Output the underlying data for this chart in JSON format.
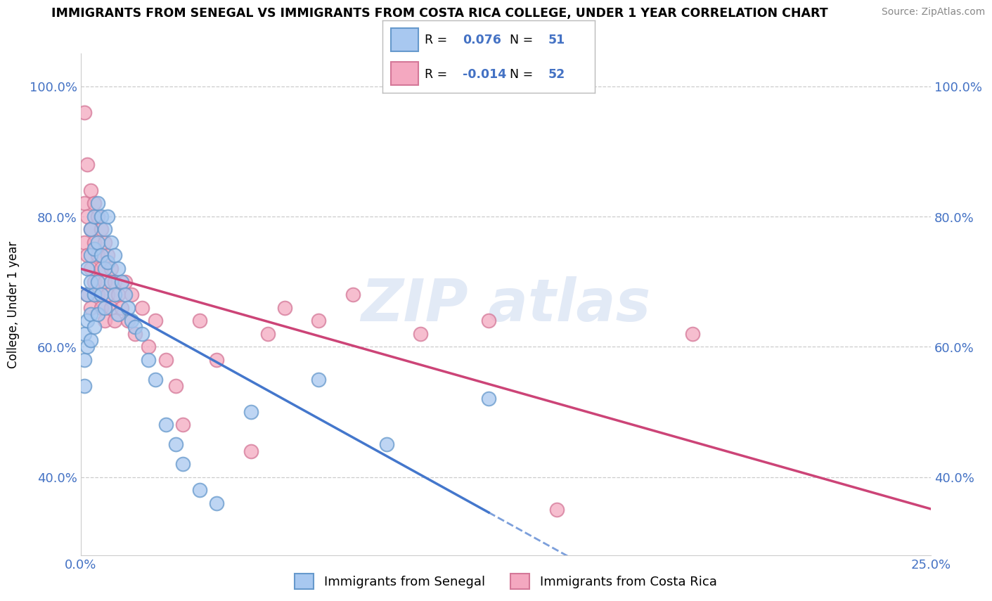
{
  "title": "IMMIGRANTS FROM SENEGAL VS IMMIGRANTS FROM COSTA RICA COLLEGE, UNDER 1 YEAR CORRELATION CHART",
  "source": "Source: ZipAtlas.com",
  "ylabel": "College, Under 1 year",
  "r_senegal": 0.076,
  "n_senegal": 51,
  "r_costa_rica": -0.014,
  "n_costa_rica": 52,
  "xlim": [
    0.0,
    0.25
  ],
  "ylim": [
    0.28,
    1.05
  ],
  "x_tick_labels": [
    "0.0%",
    "25.0%"
  ],
  "x_tick_values": [
    0.0,
    0.25
  ],
  "y_tick_labels": [
    "40.0%",
    "60.0%",
    "80.0%",
    "100.0%"
  ],
  "y_tick_values": [
    0.4,
    0.6,
    0.8,
    1.0
  ],
  "color_senegal": "#A8C8F0",
  "color_costa_rica": "#F4A8C0",
  "edge_senegal": "#6699CC",
  "edge_costa_rica": "#D47898",
  "line_color_senegal": "#4477CC",
  "line_color_costa_rica": "#CC4477",
  "watermark_color": "#D0DCF0",
  "legend_label_senegal": "Immigrants from Senegal",
  "legend_label_costa_rica": "Immigrants from Costa Rica",
  "senegal_x": [
    0.001,
    0.001,
    0.001,
    0.002,
    0.002,
    0.002,
    0.002,
    0.003,
    0.003,
    0.003,
    0.003,
    0.003,
    0.004,
    0.004,
    0.004,
    0.004,
    0.005,
    0.005,
    0.005,
    0.005,
    0.006,
    0.006,
    0.006,
    0.007,
    0.007,
    0.007,
    0.008,
    0.008,
    0.009,
    0.009,
    0.01,
    0.01,
    0.011,
    0.011,
    0.012,
    0.013,
    0.014,
    0.015,
    0.016,
    0.018,
    0.02,
    0.022,
    0.025,
    0.028,
    0.03,
    0.035,
    0.04,
    0.05,
    0.07,
    0.09,
    0.12
  ],
  "senegal_y": [
    0.62,
    0.58,
    0.54,
    0.72,
    0.68,
    0.64,
    0.6,
    0.78,
    0.74,
    0.7,
    0.65,
    0.61,
    0.8,
    0.75,
    0.68,
    0.63,
    0.82,
    0.76,
    0.7,
    0.65,
    0.8,
    0.74,
    0.68,
    0.78,
    0.72,
    0.66,
    0.8,
    0.73,
    0.76,
    0.7,
    0.74,
    0.68,
    0.72,
    0.65,
    0.7,
    0.68,
    0.66,
    0.64,
    0.63,
    0.62,
    0.58,
    0.55,
    0.48,
    0.45,
    0.42,
    0.38,
    0.36,
    0.5,
    0.55,
    0.45,
    0.52
  ],
  "costa_rica_x": [
    0.001,
    0.001,
    0.001,
    0.002,
    0.002,
    0.002,
    0.002,
    0.003,
    0.003,
    0.003,
    0.003,
    0.004,
    0.004,
    0.004,
    0.005,
    0.005,
    0.005,
    0.006,
    0.006,
    0.006,
    0.007,
    0.007,
    0.007,
    0.008,
    0.008,
    0.009,
    0.009,
    0.01,
    0.01,
    0.011,
    0.012,
    0.013,
    0.014,
    0.015,
    0.016,
    0.018,
    0.02,
    0.022,
    0.025,
    0.028,
    0.03,
    0.035,
    0.04,
    0.05,
    0.055,
    0.06,
    0.07,
    0.08,
    0.1,
    0.12,
    0.14,
    0.18
  ],
  "costa_rica_y": [
    0.96,
    0.82,
    0.76,
    0.88,
    0.8,
    0.74,
    0.68,
    0.84,
    0.78,
    0.72,
    0.66,
    0.82,
    0.76,
    0.7,
    0.8,
    0.74,
    0.68,
    0.78,
    0.72,
    0.66,
    0.76,
    0.7,
    0.64,
    0.74,
    0.68,
    0.72,
    0.66,
    0.7,
    0.64,
    0.68,
    0.66,
    0.7,
    0.64,
    0.68,
    0.62,
    0.66,
    0.6,
    0.64,
    0.58,
    0.54,
    0.48,
    0.64,
    0.58,
    0.44,
    0.62,
    0.66,
    0.64,
    0.68,
    0.62,
    0.64,
    0.35,
    0.62
  ]
}
